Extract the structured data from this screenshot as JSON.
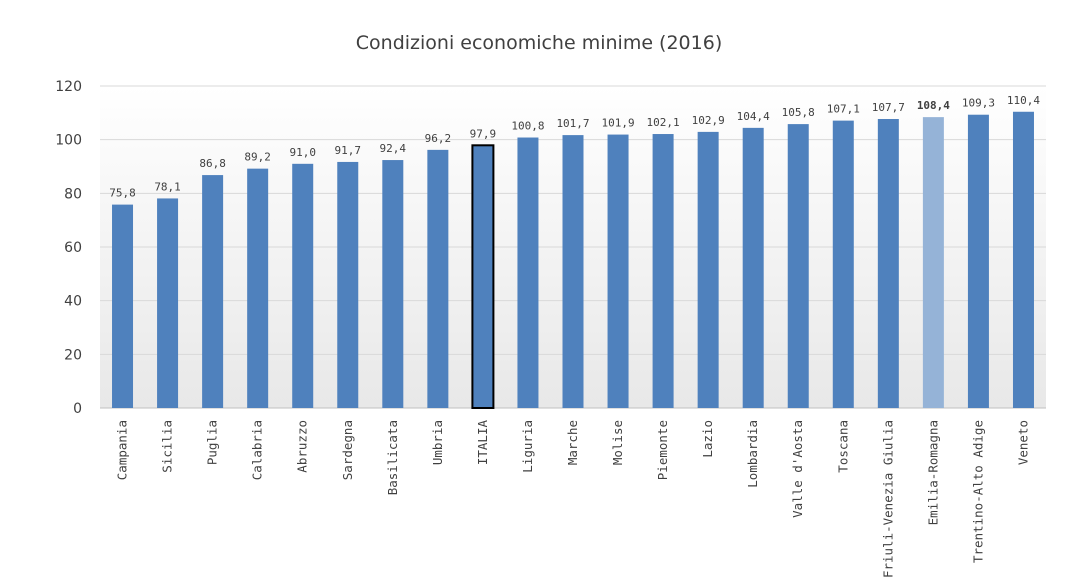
{
  "colors": {
    "bar": "#4f81bd",
    "highlight_bar": "#95b3d7",
    "italia_outline": "#000000",
    "grid": "#d9d9d9",
    "background_gradient_end": "#e8e8e8"
  },
  "chart_data": {
    "type": "bar",
    "title": "Condizioni economiche minime (2016)",
    "xlabel": "",
    "ylabel": "",
    "ylim": [
      0,
      120
    ],
    "yticks": [
      0,
      20,
      40,
      60,
      80,
      100,
      120
    ],
    "grid": true,
    "categories": [
      "Campania",
      "Sicilia",
      "Puglia",
      "Calabria",
      "Abruzzo",
      "Sardegna",
      "Basilicata",
      "Umbria",
      "ITALIA",
      "Liguria",
      "Marche",
      "Molise",
      "Piemonte",
      "Lazio",
      "Lombardia",
      "Valle d'Aosta",
      "Toscana",
      "Friuli-Venezia Giulia",
      "Emilia-Romagna",
      "Trentino-Alto Adige",
      "Veneto"
    ],
    "values": [
      75.8,
      78.1,
      86.8,
      89.2,
      91.0,
      91.7,
      92.4,
      96.2,
      97.9,
      100.8,
      101.7,
      101.9,
      102.1,
      102.9,
      104.4,
      105.8,
      107.1,
      107.7,
      108.4,
      109.3,
      110.4
    ],
    "value_labels": [
      "75,8",
      "78,1",
      "86,8",
      "89,2",
      "91,0",
      "91,7",
      "92,4",
      "96,2",
      "97,9",
      "100,8",
      "101,7",
      "101,9",
      "102,1",
      "102,9",
      "104,4",
      "105,8",
      "107,1",
      "107,7",
      "108,4",
      "109,3",
      "110,4"
    ],
    "highlight_category": "Emilia-Romagna",
    "outlined_category": "ITALIA"
  }
}
